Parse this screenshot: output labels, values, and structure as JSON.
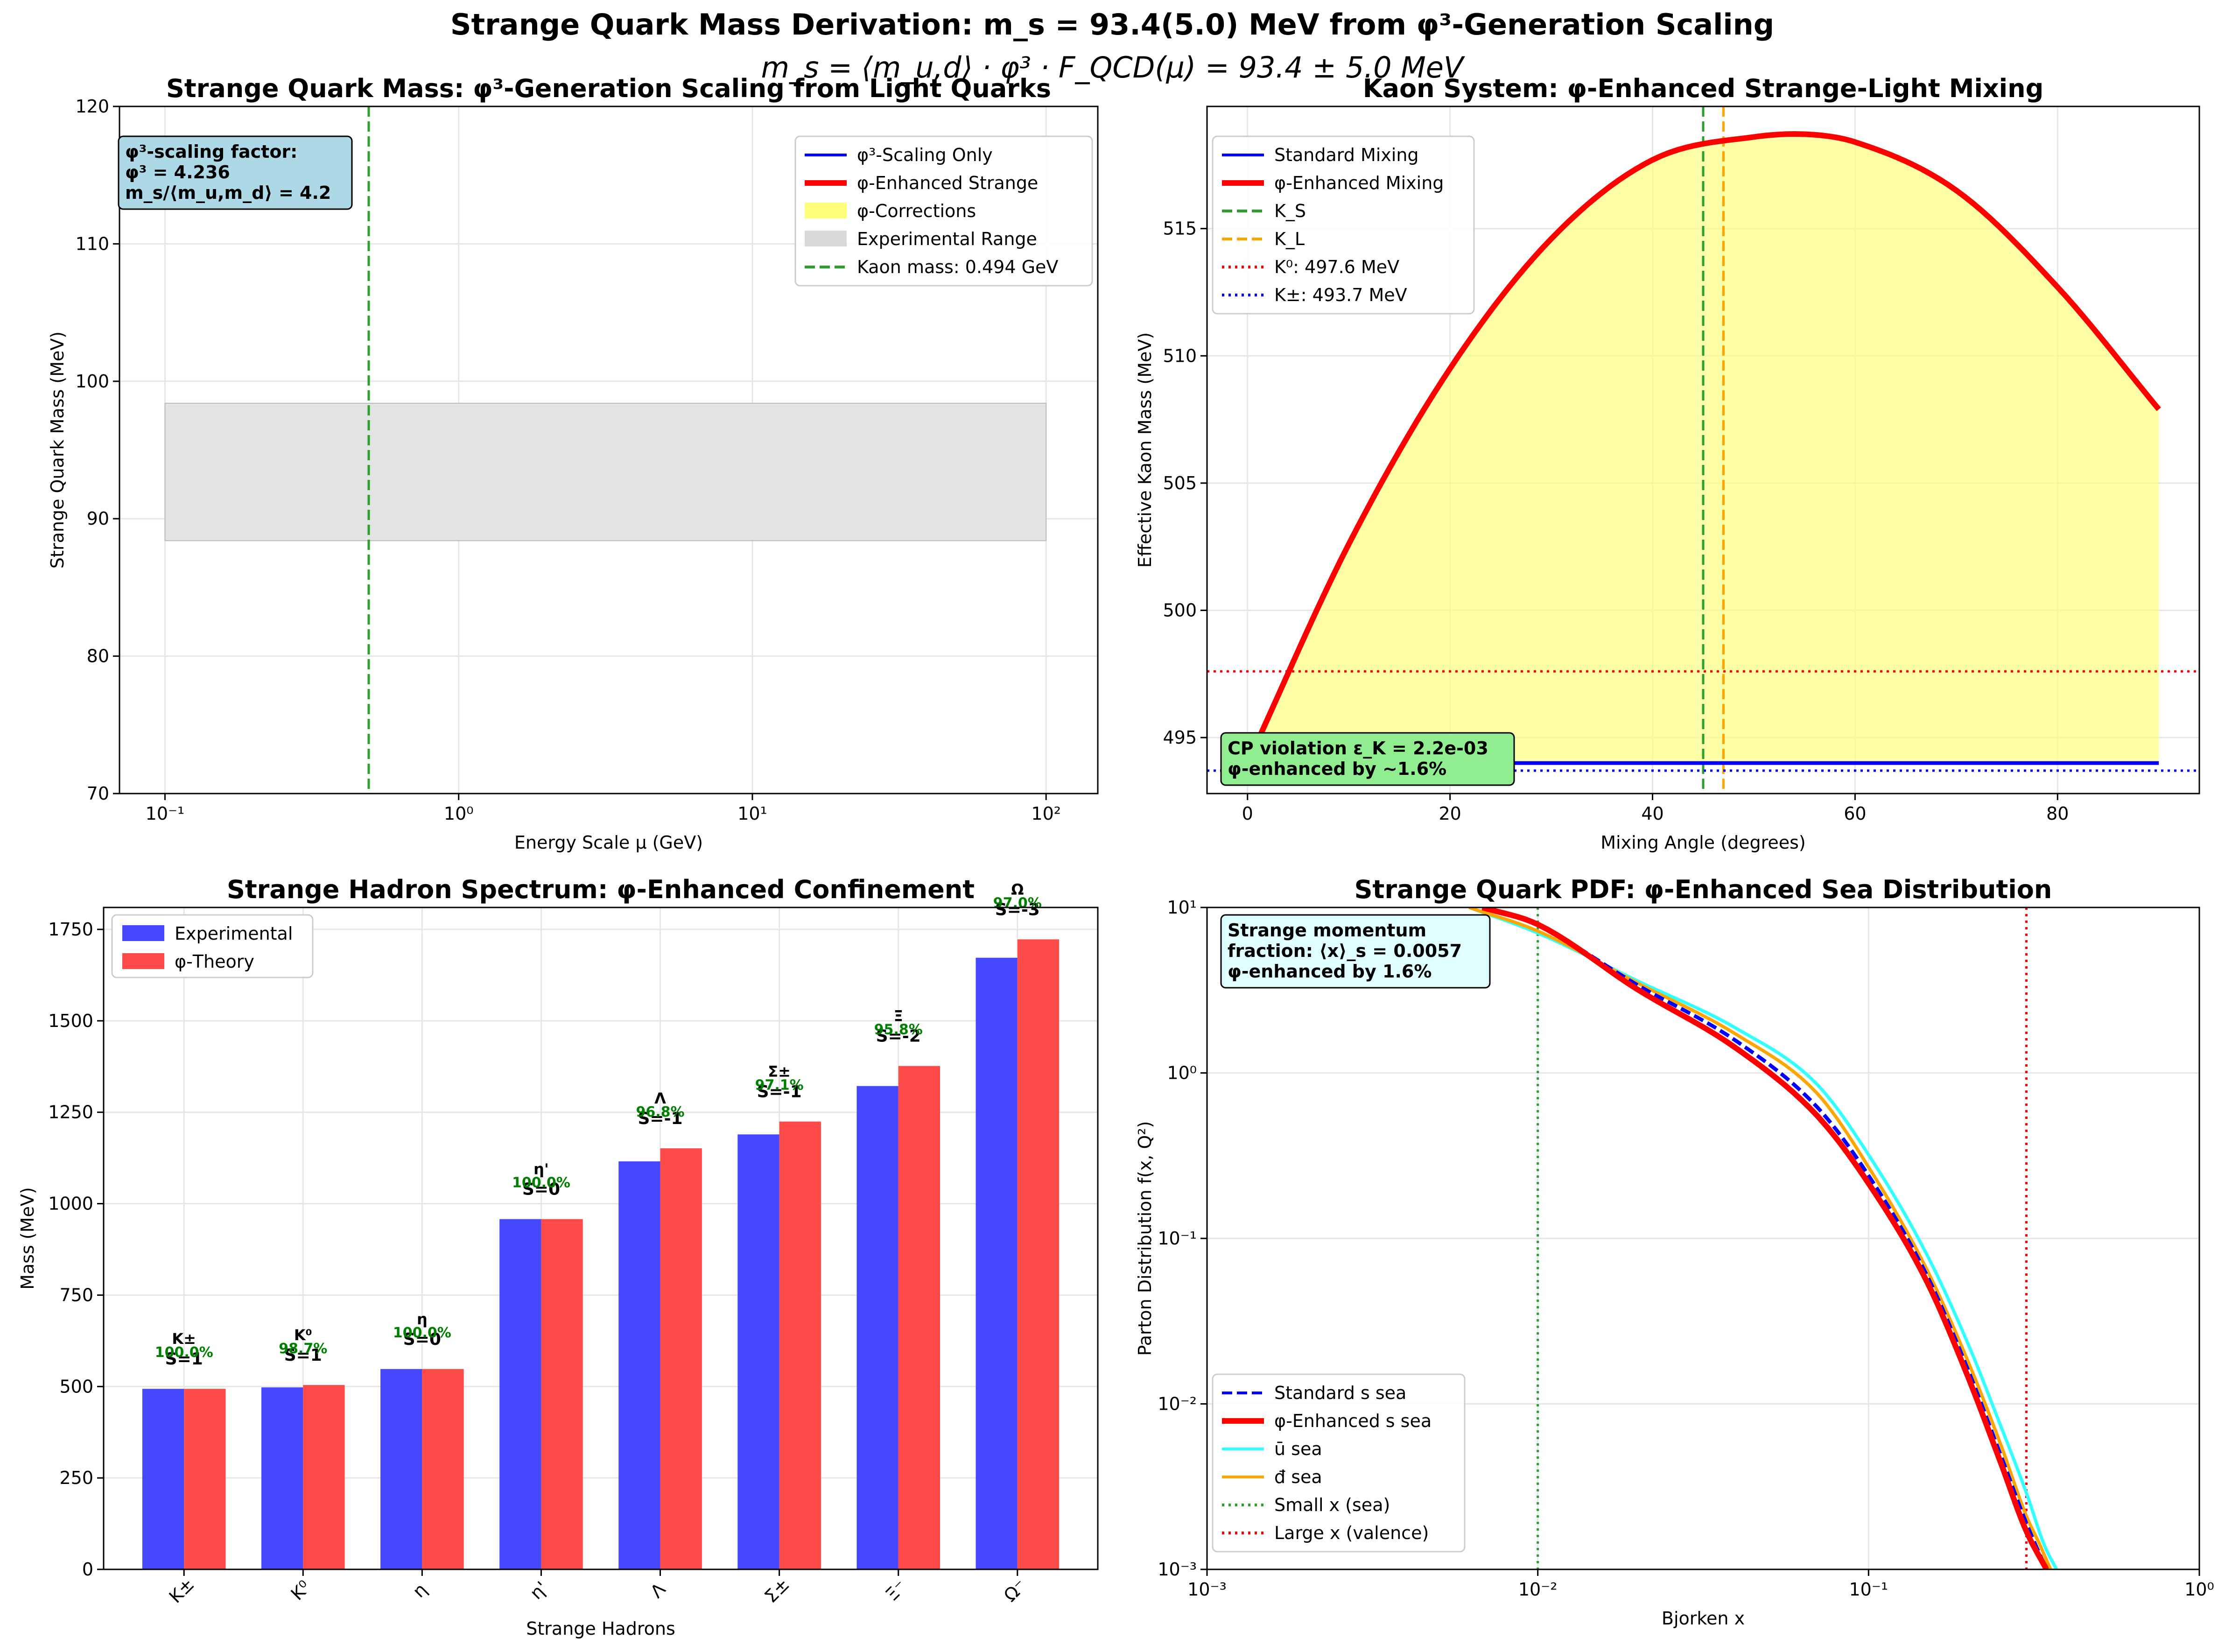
{
  "figure": {
    "suptitle": "Strange Quark Mass Derivation: m_s = 93.4(5.0) MeV from φ³-Generation Scaling",
    "equation": "m_s = ⟨m_u,d⟩ · φ³ · F_QCD(μ) = 93.4 ± 5.0 MeV"
  },
  "chart_data": [
    {
      "id": "p1",
      "type": "line",
      "title": "Strange Quark Mass: φ³-Generation Scaling from Light Quarks",
      "xlabel": "Energy Scale μ (GeV)",
      "ylabel": "Strange Quark Mass (MeV)",
      "xscale": "log",
      "xlim": [
        0.07,
        150
      ],
      "ylim": [
        70,
        120
      ],
      "xticks": [
        0.1,
        1,
        10,
        100
      ],
      "xtick_labels": [
        "10⁻¹",
        "10⁰",
        "10¹",
        "10²"
      ],
      "yticks": [
        70,
        80,
        90,
        100,
        110,
        120
      ],
      "grid": true,
      "legend_position": "upper right",
      "legend": [
        {
          "label": "φ³-Scaling Only",
          "color": "#0000ff",
          "style": "solid"
        },
        {
          "label": "φ-Enhanced Strange",
          "color": "#ff0000",
          "style": "solid-thick"
        },
        {
          "label": "φ-Corrections",
          "color": "#ffff7a",
          "style": "patch"
        },
        {
          "label": "Experimental Range",
          "color": "#d9d9d9",
          "style": "patch"
        },
        {
          "label": "Kaon mass: 0.494 GeV",
          "color": "#2ca02c",
          "style": "dashed"
        }
      ],
      "bands": [
        {
          "name": "Experimental Range",
          "x": [
            0.1,
            100
          ],
          "y": [
            88.4,
            98.4
          ],
          "color": "#e3e3e3"
        }
      ],
      "vlines": [
        {
          "x": 0.494,
          "color": "#2ca02c",
          "style": "dashed"
        }
      ],
      "annotation": [
        "φ³-scaling factor:",
        "φ³ = 4.236",
        "m_s/⟨m_u,m_d⟩ = 4.2"
      ]
    },
    {
      "id": "p2",
      "type": "line",
      "title": "Kaon System: φ-Enhanced Strange-Light Mixing",
      "xlabel": "Mixing Angle (degrees)",
      "ylabel": "Effective Kaon Mass (MeV)",
      "xlim": [
        -4,
        94
      ],
      "ylim": [
        492.8,
        519.8
      ],
      "xticks": [
        0,
        20,
        40,
        60,
        80
      ],
      "yticks": [
        495,
        500,
        505,
        510,
        515
      ],
      "grid": true,
      "legend_position": "upper left",
      "legend": [
        {
          "label": "Standard Mixing",
          "color": "#0000ff",
          "style": "solid"
        },
        {
          "label": "φ-Enhanced Mixing",
          "color": "#ff0000",
          "style": "solid-thick"
        },
        {
          "label": "K_S",
          "color": "#2ca02c",
          "style": "dashed"
        },
        {
          "label": "K_L",
          "color": "#ffa500",
          "style": "dashed"
        },
        {
          "label": "K⁰: 497.6 MeV",
          "color": "#ff0000",
          "style": "dotted"
        },
        {
          "label": "K±: 493.7 MeV",
          "color": "#0000ff",
          "style": "dotted"
        }
      ],
      "series": [
        {
          "name": "Standard Mixing",
          "x": [
            0,
            90
          ],
          "y": [
            494.0,
            494.0
          ]
        },
        {
          "name": "φ-Enhanced Mixing",
          "x": [
            0,
            10,
            20,
            30,
            40,
            50,
            55.5,
            60,
            70,
            80,
            90
          ],
          "y": [
            494.0,
            502.6,
            509.5,
            514.6,
            517.7,
            518.6,
            518.7,
            518.4,
            516.5,
            512.7,
            507.9
          ]
        }
      ],
      "vlines": [
        {
          "x": 45,
          "color": "#2ca02c",
          "style": "dashed"
        },
        {
          "x": 47,
          "color": "#ffa500",
          "style": "dashed"
        }
      ],
      "hlines": [
        {
          "y": 497.6,
          "color": "#ff0000",
          "style": "dotted"
        },
        {
          "y": 493.7,
          "color": "#0000ff",
          "style": "dotted"
        }
      ],
      "annotation": [
        "CP violation ε_K = 2.2e-03",
        "φ-enhanced by ~1.6%"
      ]
    },
    {
      "id": "p3",
      "type": "bar",
      "title": "Strange Hadron Spectrum: φ-Enhanced Confinement",
      "xlabel": "Strange Hadrons",
      "ylabel": "Mass (MeV)",
      "ylim": [
        0,
        1810
      ],
      "yticks": [
        0,
        250,
        500,
        750,
        1000,
        1250,
        1500,
        1750
      ],
      "grid": true,
      "legend_position": "upper left",
      "categories": [
        "K±",
        "K⁰",
        "η",
        "η'",
        "Λ",
        "Σ±",
        "Ξ⁻",
        "Ω⁻"
      ],
      "name_labels": [
        "K±",
        "K⁰",
        "η",
        "η'",
        "Λ",
        "Σ±",
        "Ξ",
        "Ω"
      ],
      "strangeness": [
        "S=1",
        "S=1",
        "S=0",
        "S=0",
        "S=-1",
        "S=-1",
        "S=-2",
        "S=-3"
      ],
      "accuracy": [
        "100.0%",
        "98.7%",
        "100.0%",
        "100.0%",
        "96.8%",
        "97.1%",
        "95.8%",
        "97.0%"
      ],
      "series": [
        {
          "name": "Experimental",
          "color": "#4747ff",
          "values": [
            493.7,
            497.6,
            547.9,
            957.8,
            1115.7,
            1189.4,
            1321.7,
            1672.5
          ]
        },
        {
          "name": "φ-Theory",
          "color": "#ff4a4a",
          "values": [
            493.7,
            504.1,
            547.9,
            957.8,
            1151.3,
            1224.5,
            1376.6,
            1722.8
          ]
        }
      ]
    },
    {
      "id": "p4",
      "type": "line",
      "title": "Strange Quark PDF: φ-Enhanced Sea Distribution",
      "xlabel": "Bjorken x",
      "ylabel": "Parton Distribution f(x, Q²)",
      "xscale": "log",
      "yscale": "log",
      "xlim": [
        0.001,
        1
      ],
      "ylim": [
        0.001,
        10
      ],
      "xticks": [
        0.001,
        0.01,
        0.1,
        1
      ],
      "xtick_labels": [
        "10⁻³",
        "10⁻²",
        "10⁻¹",
        "10⁰"
      ],
      "yticks": [
        0.001,
        0.01,
        0.1,
        1,
        10
      ],
      "ytick_labels": [
        "10⁻³",
        "10⁻²",
        "10⁻¹",
        "10⁰",
        "10¹"
      ],
      "grid": true,
      "legend_position": "lower left",
      "legend": [
        {
          "label": "Standard s sea",
          "color": "#0000ff",
          "style": "dashed"
        },
        {
          "label": "φ-Enhanced s sea",
          "color": "#ff0000",
          "style": "solid-thick"
        },
        {
          "label": "ū sea",
          "color": "#33ffff",
          "style": "solid"
        },
        {
          "label": "đ sea",
          "color": "#ffa500",
          "style": "solid"
        },
        {
          "label": "Small x (sea)",
          "color": "#2ca02c",
          "style": "dotted"
        },
        {
          "label": "Large x (valence)",
          "color": "#ff0000",
          "style": "dotted"
        }
      ],
      "series": [
        {
          "name": "ū sea",
          "color": "#33ffff",
          "x": [
            0.0062,
            0.01,
            0.02,
            0.04,
            0.07,
            0.1,
            0.15,
            0.2,
            0.25,
            0.3,
            0.34,
            0.37
          ],
          "y": [
            10,
            7.0,
            3.6,
            1.85,
            0.85,
            0.32,
            0.08,
            0.023,
            0.0075,
            0.0029,
            0.0014,
            0.001
          ]
        },
        {
          "name": "đ sea",
          "color": "#ffa500",
          "x": [
            0.0062,
            0.01,
            0.02,
            0.04,
            0.07,
            0.1,
            0.15,
            0.2,
            0.25,
            0.3,
            0.33,
            0.355
          ],
          "y": [
            10,
            7.2,
            3.5,
            1.7,
            0.75,
            0.27,
            0.065,
            0.018,
            0.0058,
            0.0021,
            0.0014,
            0.001
          ]
        },
        {
          "name": "Standard s sea",
          "color": "#0000ff",
          "x": [
            0.0068,
            0.01,
            0.02,
            0.04,
            0.07,
            0.1,
            0.15,
            0.2,
            0.25,
            0.3,
            0.345
          ],
          "y": [
            10,
            7.8,
            3.4,
            1.55,
            0.62,
            0.24,
            0.06,
            0.016,
            0.005,
            0.0019,
            0.001
          ]
        },
        {
          "name": "φ-Enhanced s sea",
          "color": "#ff0000",
          "x": [
            0.0068,
            0.01,
            0.02,
            0.04,
            0.07,
            0.1,
            0.15,
            0.2,
            0.25,
            0.3,
            0.345
          ],
          "y": [
            10,
            7.9,
            3.2,
            1.4,
            0.55,
            0.215,
            0.055,
            0.0145,
            0.0045,
            0.0017,
            0.001
          ]
        }
      ],
      "vlines": [
        {
          "x": 0.01,
          "color": "#2ca02c",
          "style": "dotted"
        },
        {
          "x": 0.3,
          "color": "#ff0000",
          "style": "dotted"
        }
      ],
      "annotation": [
        "Strange momentum",
        "fraction: ⟨x⟩_s = 0.0057",
        "φ-enhanced by 1.6%"
      ]
    }
  ]
}
